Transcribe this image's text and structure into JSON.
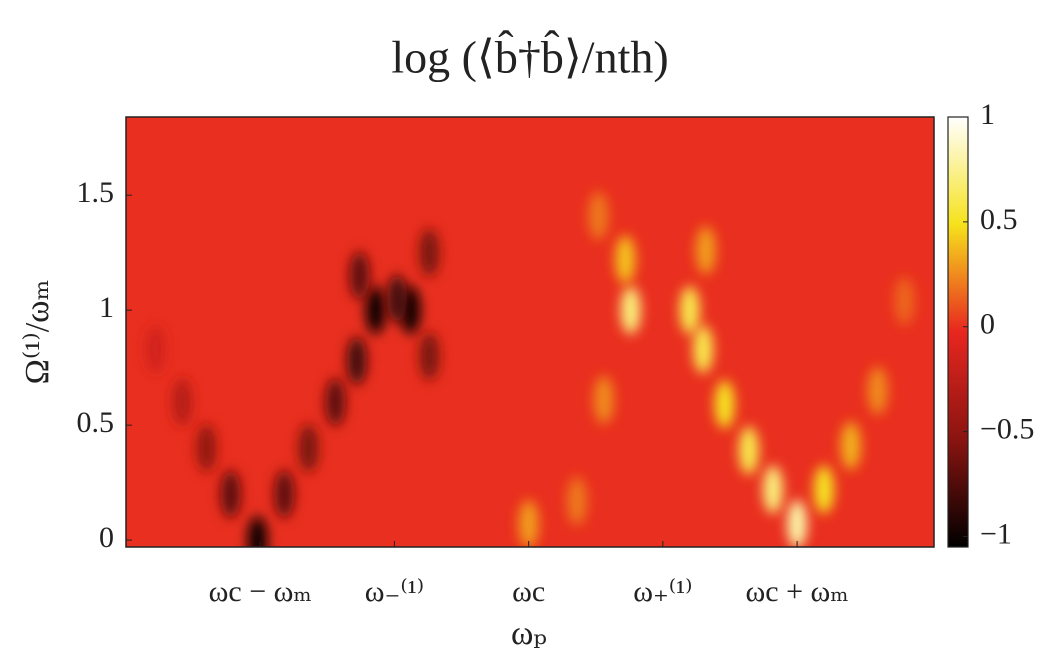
{
  "chart_data": {
    "type": "heatmap",
    "title": "log (⟨b̂†b̂⟩/nth)",
    "x_label": "ωₚ",
    "y_label": "Ω⁽¹⁾/ωₘ",
    "xlim": [
      -1.5,
      1.51
    ],
    "ylim": [
      -0.03,
      1.84
    ],
    "xticks": [
      {
        "value": -1,
        "label": "ωc − ωₘ"
      },
      {
        "value": -0.5,
        "label": "ω₋⁽¹⁾"
      },
      {
        "value": 0,
        "label": "ωc"
      },
      {
        "value": 0.5,
        "label": "ω₊⁽¹⁾"
      },
      {
        "value": 1,
        "label": "ωc + ωₘ"
      }
    ],
    "yticks": [
      0,
      0.5,
      1,
      1.5
    ],
    "clim": [
      -1.05,
      1.0
    ],
    "cticks": [
      {
        "value": -1,
        "label": "−1"
      },
      {
        "value": -0.5,
        "label": "−0.5"
      },
      0,
      0.5,
      1
    ],
    "colormap": [
      "#000000",
      "#8a1410",
      "#e8261f",
      "#f6e21c",
      "#ffffff"
    ],
    "z_background": 0,
    "heatmap": {
      "x": [
        -1.01,
        -1.11,
        -1.2,
        -1.29,
        -1.39,
        -0.91,
        -0.82,
        -0.72,
        -0.64,
        -0.57,
        -0.44,
        -0.63,
        -0.37,
        -0.37,
        -0.49,
        1.0,
        0.91,
        1.1,
        0.82,
        1.2,
        0.73,
        1.3,
        0.65,
        0.38,
        0.6,
        0.36,
        0.66,
        0.28,
        0.26,
        0.0,
        0.18,
        1.4
      ],
      "y": [
        0.0,
        0.2,
        0.4,
        0.6,
        0.83,
        0.2,
        0.4,
        0.6,
        0.78,
        1.0,
        1.0,
        1.15,
        1.25,
        0.8,
        1.05,
        0.07,
        0.22,
        0.22,
        0.39,
        0.41,
        0.59,
        0.65,
        0.83,
        1.0,
        1.0,
        1.22,
        1.26,
        0.61,
        1.41,
        0.07,
        0.17,
        1.04
      ],
      "z": [
        -1.0,
        -0.7,
        -0.5,
        -0.3,
        -0.15,
        -0.7,
        -0.6,
        -0.7,
        -0.8,
        -1.0,
        -1.0,
        -0.7,
        -0.6,
        -0.6,
        -0.8,
        0.8,
        0.7,
        0.5,
        0.6,
        0.35,
        0.5,
        0.25,
        0.6,
        0.7,
        0.6,
        0.4,
        0.3,
        0.25,
        0.2,
        0.3,
        0.2,
        0.15
      ]
    }
  }
}
